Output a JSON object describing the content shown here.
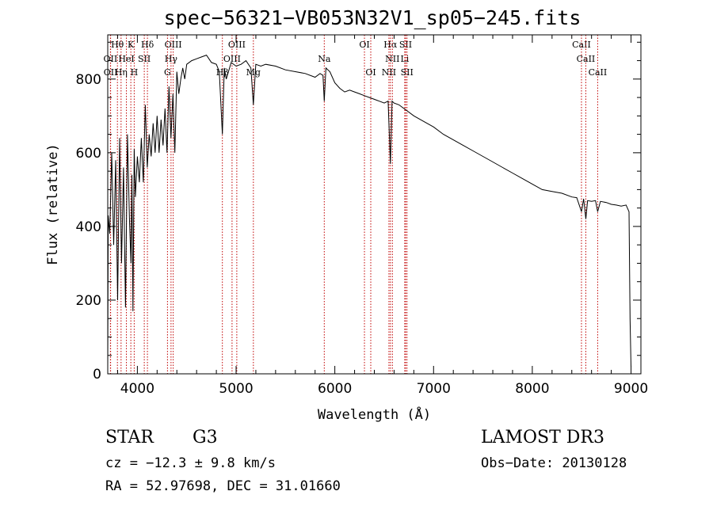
{
  "title": "spec−56321−VB053N32V1_sp05−245.fits",
  "info": {
    "object_class": "STAR",
    "subclass": "G3",
    "survey": "LAMOST DR3",
    "cz": "cz = −12.3 ± 9.8 km/s",
    "obs_date": "Obs−Date: 20130128",
    "ra_dec": "RA =  52.97698, DEC =  31.01660"
  },
  "colors": {
    "spectrum": "#000000",
    "line_marker": "#c00000",
    "axis": "#000000"
  },
  "chart_data": {
    "type": "line",
    "title": "spec−56321−VB053N32V1_sp05−245.fits",
    "xlabel": "Wavelength (Å)",
    "ylabel": "Flux (relative)",
    "xlim": [
      3700,
      9100
    ],
    "ylim": [
      0,
      920
    ],
    "x_ticks": [
      4000,
      5000,
      6000,
      7000,
      8000,
      9000
    ],
    "y_ticks": [
      0,
      200,
      400,
      600,
      800
    ],
    "series": [
      {
        "name": "flux",
        "x": [
          3700,
          3705,
          3720,
          3740,
          3760,
          3780,
          3800,
          3820,
          3840,
          3860,
          3880,
          3900,
          3920,
          3935,
          3945,
          3955,
          3968,
          3980,
          4000,
          4020,
          4040,
          4060,
          4080,
          4100,
          4120,
          4140,
          4160,
          4180,
          4200,
          4220,
          4240,
          4260,
          4280,
          4300,
          4320,
          4340,
          4360,
          4380,
          4400,
          4420,
          4440,
          4460,
          4480,
          4500,
          4550,
          4600,
          4650,
          4700,
          4750,
          4800,
          4830,
          4861,
          4880,
          4900,
          4950,
          5000,
          5050,
          5100,
          5150,
          5175,
          5200,
          5250,
          5300,
          5400,
          5500,
          5600,
          5700,
          5800,
          5850,
          5880,
          5893,
          5910,
          5950,
          6000,
          6050,
          6100,
          6150,
          6200,
          6250,
          6300,
          6350,
          6400,
          6450,
          6500,
          6540,
          6563,
          6580,
          6600,
          6650,
          6700,
          6800,
          6900,
          7000,
          7100,
          7200,
          7300,
          7400,
          7500,
          7600,
          7700,
          7800,
          7900,
          8000,
          8100,
          8200,
          8300,
          8400,
          8450,
          8498,
          8520,
          8542,
          8560,
          8600,
          8640,
          8662,
          8690,
          8750,
          8800,
          8850,
          8900,
          8950,
          8980,
          8990,
          9000
        ],
        "y": [
          20,
          430,
          380,
          600,
          350,
          580,
          200,
          640,
          300,
          560,
          180,
          650,
          420,
          300,
          540,
          170,
          610,
          480,
          590,
          520,
          640,
          520,
          730,
          560,
          650,
          590,
          680,
          600,
          700,
          600,
          690,
          620,
          720,
          600,
          780,
          640,
          760,
          600,
          820,
          760,
          800,
          830,
          800,
          840,
          850,
          855,
          860,
          865,
          845,
          840,
          820,
          650,
          830,
          800,
          845,
          835,
          840,
          850,
          830,
          730,
          840,
          835,
          840,
          835,
          825,
          820,
          815,
          805,
          815,
          810,
          740,
          830,
          820,
          790,
          775,
          765,
          770,
          765,
          760,
          755,
          750,
          745,
          740,
          735,
          740,
          570,
          740,
          735,
          730,
          720,
          700,
          685,
          670,
          650,
          635,
          620,
          605,
          590,
          575,
          560,
          545,
          530,
          515,
          500,
          495,
          490,
          480,
          478,
          440,
          475,
          420,
          470,
          468,
          470,
          440,
          468,
          465,
          460,
          458,
          455,
          458,
          440,
          150,
          20
        ]
      }
    ],
    "line_markers": [
      {
        "label": "Hθ",
        "wavelength": 3798,
        "row": 0
      },
      {
        "label": "K",
        "wavelength": 3934,
        "row": 0
      },
      {
        "label": "Hδ",
        "wavelength": 4102,
        "row": 0
      },
      {
        "label": "OIII",
        "wavelength": 4363,
        "row": 0
      },
      {
        "label": "OIII",
        "wavelength": 5007,
        "row": 0
      },
      {
        "label": "OI",
        "wavelength": 6300,
        "row": 0
      },
      {
        "label": "Hα",
        "wavelength": 6563,
        "row": 0
      },
      {
        "label": "SII",
        "wavelength": 6717,
        "row": 0
      },
      {
        "label": "CaII",
        "wavelength": 8498,
        "row": 0
      },
      {
        "label": "OII",
        "wavelength": 3727,
        "row": 1
      },
      {
        "label": "HeI",
        "wavelength": 3889,
        "row": 1
      },
      {
        "label": "SII",
        "wavelength": 4070,
        "row": 1
      },
      {
        "label": "Hγ",
        "wavelength": 4341,
        "row": 1
      },
      {
        "label": "OIII",
        "wavelength": 4959,
        "row": 1
      },
      {
        "label": "Na",
        "wavelength": 5893,
        "row": 1
      },
      {
        "label": "NII",
        "wavelength": 6583,
        "row": 1
      },
      {
        "label": "Li",
        "wavelength": 6708,
        "row": 1
      },
      {
        "label": "CaII",
        "wavelength": 8542,
        "row": 1
      },
      {
        "label": "OII",
        "wavelength": 3729,
        "row": 2
      },
      {
        "label": "Hη",
        "wavelength": 3835,
        "row": 2
      },
      {
        "label": "H",
        "wavelength": 3968,
        "row": 2
      },
      {
        "label": "G",
        "wavelength": 4305,
        "row": 2
      },
      {
        "label": "Hβ",
        "wavelength": 4861,
        "row": 2
      },
      {
        "label": "Mg",
        "wavelength": 5175,
        "row": 2
      },
      {
        "label": "OI",
        "wavelength": 6364,
        "row": 2
      },
      {
        "label": "NII",
        "wavelength": 6548,
        "row": 2
      },
      {
        "label": "SII",
        "wavelength": 6731,
        "row": 2
      },
      {
        "label": "CaII",
        "wavelength": 8662,
        "row": 2
      }
    ]
  }
}
